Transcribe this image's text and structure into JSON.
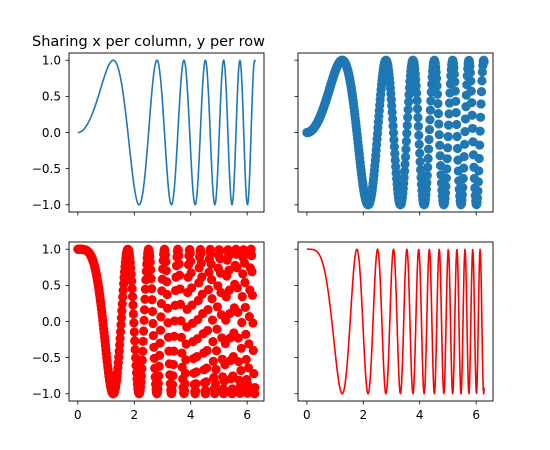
{
  "chart_data": [
    {
      "title": "Sharing x per column, y per row",
      "type": "line",
      "series": [
        {
          "function": "sin(x^2)",
          "color": "#1f77b4",
          "style": "line"
        }
      ],
      "x_range": [
        0,
        6.283185
      ],
      "xlim": [
        -0.3142,
        6.5973
      ],
      "ylim": [
        -1.1,
        1.1
      ],
      "yticks": [
        "1.0",
        "0.5",
        "0.0",
        "−0.5",
        "−1.0"
      ],
      "show_yticklabels": true,
      "show_xticklabels": false
    },
    {
      "title": "",
      "type": "scatter",
      "series": [
        {
          "function": "sin(x^2)",
          "color": "#1f77b4",
          "style": "marker"
        }
      ],
      "x_range": [
        0,
        6.283185
      ],
      "xlim": [
        -0.3142,
        6.5973
      ],
      "ylim": [
        -1.1,
        1.1
      ],
      "show_yticklabels": false,
      "show_xticklabels": false
    },
    {
      "title": "",
      "type": "scatter",
      "series": [
        {
          "function": "1 - 2*sin(x^2)^2",
          "color": "#ff0000",
          "style": "marker"
        }
      ],
      "x_range": [
        0,
        6.283185
      ],
      "xlim": [
        -0.3142,
        6.5973
      ],
      "ylim": [
        -1.1,
        1.1
      ],
      "yticks": [
        "1.0",
        "0.5",
        "0.0",
        "−0.5",
        "−1.0"
      ],
      "xticks": [
        "0",
        "2",
        "4",
        "6"
      ],
      "show_yticklabels": true,
      "show_xticklabels": true
    },
    {
      "title": "",
      "type": "line",
      "series": [
        {
          "function": "1 - 2*sin(x^2)^2",
          "color": "#ff0000",
          "style": "line"
        }
      ],
      "x_range": [
        0,
        6.283185
      ],
      "xlim": [
        -0.3142,
        6.5973
      ],
      "ylim": [
        -1.1,
        1.1
      ],
      "xticks": [
        "0",
        "2",
        "4",
        "6"
      ],
      "show_yticklabels": false,
      "show_xticklabels": true
    }
  ]
}
